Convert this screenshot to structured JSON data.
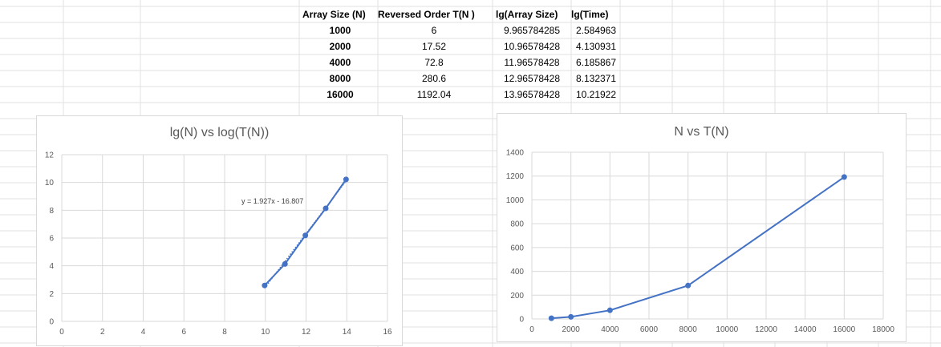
{
  "table": {
    "headers": [
      "Array Size (N)",
      "Reversed Order T(N )",
      "lg(Array Size)",
      "lg(Time)"
    ],
    "rows": [
      [
        "1000",
        "6",
        "9.965784285",
        "2.584963"
      ],
      [
        "2000",
        "17.52",
        "10.96578428",
        "4.130931"
      ],
      [
        "4000",
        "72.8",
        "11.96578428",
        "6.185867"
      ],
      [
        "8000",
        "280.6",
        "12.96578428",
        "8.132371"
      ],
      [
        "16000",
        "1192.04",
        "13.96578428",
        "10.21922"
      ]
    ]
  },
  "chart_data": [
    {
      "type": "scatter",
      "title": "lg(N) vs log(T(N))",
      "xlim": [
        0,
        16
      ],
      "ylim": [
        0,
        12
      ],
      "x_ticks": [
        "0",
        "2",
        "4",
        "6",
        "8",
        "10",
        "12",
        "14",
        "16"
      ],
      "y_ticks": [
        "0",
        "2",
        "4",
        "6",
        "8",
        "10",
        "12"
      ],
      "grid": true,
      "series": [
        {
          "x": [
            9.965784285,
            10.96578428,
            11.96578428,
            12.96578428,
            13.96578428
          ],
          "y": [
            2.584963,
            4.130931,
            6.185867,
            8.132371,
            10.21922
          ],
          "color": "#4472c4",
          "connected": true
        }
      ],
      "trendline": {
        "slope": 1.927,
        "intercept": -16.807,
        "label": "y = 1.927x - 16.807",
        "style": "dotted"
      }
    },
    {
      "type": "line",
      "title": "N vs T(N)",
      "xlim": [
        0,
        18000
      ],
      "ylim": [
        0,
        1400
      ],
      "x_ticks": [
        "0",
        "2000",
        "4000",
        "6000",
        "8000",
        "10000",
        "12000",
        "14000",
        "16000",
        "18000"
      ],
      "y_ticks": [
        "0",
        "200",
        "400",
        "600",
        "800",
        "1000",
        "1200",
        "1400"
      ],
      "grid": true,
      "series": [
        {
          "x": [
            1000,
            2000,
            4000,
            8000,
            16000
          ],
          "y": [
            6,
            17.52,
            72.8,
            280.6,
            1192.04
          ],
          "color": "#4472c4"
        }
      ]
    }
  ]
}
